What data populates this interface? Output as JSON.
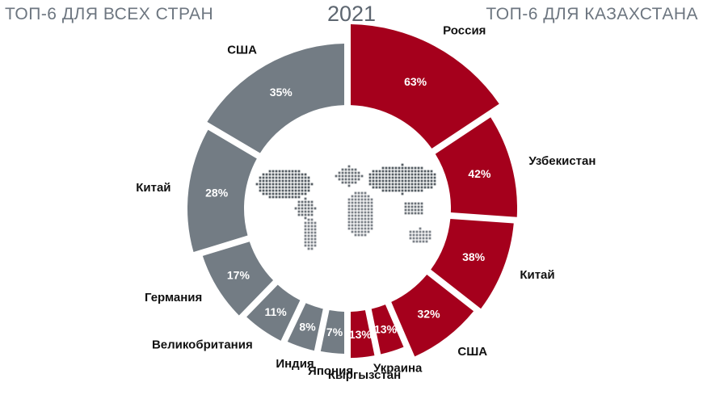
{
  "header": {
    "left": "ТОП-6 ДЛЯ ВСЕХ СТРАН",
    "year": "2021",
    "right": "ТОП-6 ДЛЯ КАЗАХСТАНА"
  },
  "colors": {
    "left": "#737c84",
    "right": "#a5001c",
    "text": "#111111"
  },
  "chart_data": [
    {
      "type": "pie",
      "subtype": "half-donut",
      "side": "left",
      "title": "ТОП-6 ДЛЯ ВСЕХ СТРАН",
      "categories": [
        "США",
        "Китай",
        "Германия",
        "Великобритания",
        "Индия",
        "Япония"
      ],
      "values": [
        35,
        28,
        17,
        11,
        8,
        7
      ],
      "value_labels": [
        "35%",
        "28%",
        "17%",
        "11%",
        "8%",
        "7%"
      ]
    },
    {
      "type": "pie",
      "subtype": "half-donut",
      "side": "right",
      "title": "ТОП-6 ДЛЯ КАЗАХСТАНА",
      "categories": [
        "Россия",
        "Узбекистан",
        "Китай",
        "США",
        "Украина",
        "Кыргызстан"
      ],
      "values": [
        63,
        42,
        38,
        32,
        13,
        13
      ],
      "value_labels": [
        "63%",
        "42%",
        "38%",
        "32%",
        "13%",
        "13%"
      ]
    }
  ]
}
